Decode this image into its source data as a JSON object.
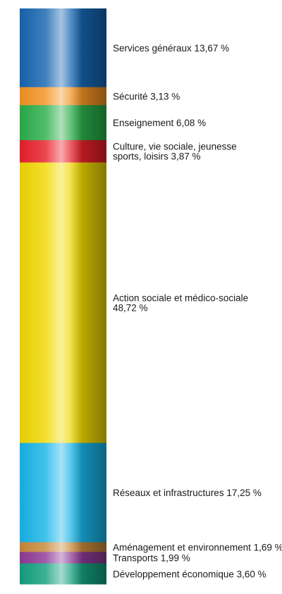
{
  "chart_data": {
    "type": "bar",
    "orientation": "stacked-vertical",
    "unit": "%",
    "segments": [
      {
        "name": "Services généraux",
        "value": 13.67,
        "label": [
          "Services généraux 13,67 %"
        ],
        "color": "#1565b0"
      },
      {
        "name": "Sécurité",
        "value": 3.13,
        "label": [
          "Sécurité 3,13 %"
        ],
        "color": "#f39322"
      },
      {
        "name": "Enseignement",
        "value": 6.08,
        "label": [
          "Enseignement 6,08 %"
        ],
        "color": "#2aae4a"
      },
      {
        "name": "Culture, vie sociale, jeunesse sports, loisirs",
        "value": 3.87,
        "label": [
          "Culture, vie sociale, jeunesse",
          "sports, loisirs 3,87 %"
        ],
        "color": "#e8202a"
      },
      {
        "name": "Action sociale et médico-sociale",
        "value": 48.72,
        "label": [
          "Action sociale et médico-sociale",
          "48,72 %"
        ],
        "color": "#f0d800"
      },
      {
        "name": "Réseaux et infrastructures",
        "value": 17.25,
        "label": [
          "Réseaux et infrastructures 17,25 %"
        ],
        "color": "#18b4e8"
      },
      {
        "name": "Aménagement et environnement",
        "value": 1.69,
        "label": [
          "Aménagement et environnement 1,69 %"
        ],
        "color": "#c8893a"
      },
      {
        "name": "Transports",
        "value": 1.99,
        "label": [
          "Transports 1,99 %"
        ],
        "color": "#8e3a96"
      },
      {
        "name": "Développement économique",
        "value": 3.6,
        "label": [
          "Développement économique 3,60 %"
        ],
        "color": "#14a07e"
      }
    ]
  }
}
